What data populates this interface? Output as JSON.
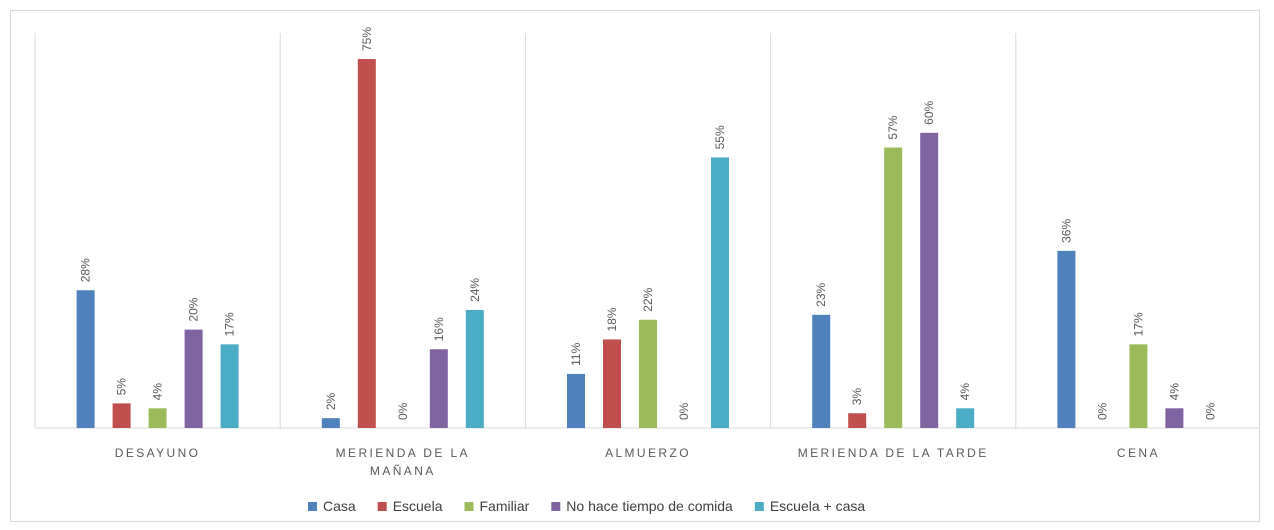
{
  "chart_data": {
    "type": "bar",
    "title": "",
    "xlabel": "",
    "ylabel": "",
    "ylim": [
      0,
      80
    ],
    "grid": false,
    "legend_position": "bottom",
    "categories": [
      [
        "DESAYUNO"
      ],
      [
        "MERIENDA  DE  LA",
        "MAÑANA"
      ],
      [
        "ALMUERZO"
      ],
      [
        "MERIENDA  DE  LA  TARDE"
      ],
      [
        "CENA"
      ]
    ],
    "series": [
      {
        "name": "Casa",
        "color": "#4f81bd",
        "values": [
          28,
          2,
          11,
          23,
          36
        ],
        "labels": [
          "28%",
          "2%",
          "11%",
          "23%",
          "36%"
        ]
      },
      {
        "name": "Escuela",
        "color": "#c0504d",
        "values": [
          5,
          75,
          18,
          3,
          0
        ],
        "labels": [
          "5%",
          "75%",
          "18%",
          "3%",
          "0%"
        ]
      },
      {
        "name": "Familiar",
        "color": "#9bbb59",
        "values": [
          4,
          0,
          22,
          57,
          17
        ],
        "labels": [
          "4%",
          "0%",
          "22%",
          "57%",
          "17%"
        ]
      },
      {
        "name": "No hace tiempo de comida",
        "color": "#8064a2",
        "values": [
          20,
          16,
          0,
          60,
          4
        ],
        "labels": [
          "20%",
          "16%",
          "0%",
          "60%",
          "4%"
        ]
      },
      {
        "name": "Escuela + casa",
        "color": "#4bacc6",
        "values": [
          17,
          24,
          55,
          4,
          0
        ],
        "labels": [
          "17%",
          "24%",
          "55%",
          "4%",
          "0%"
        ]
      }
    ]
  }
}
